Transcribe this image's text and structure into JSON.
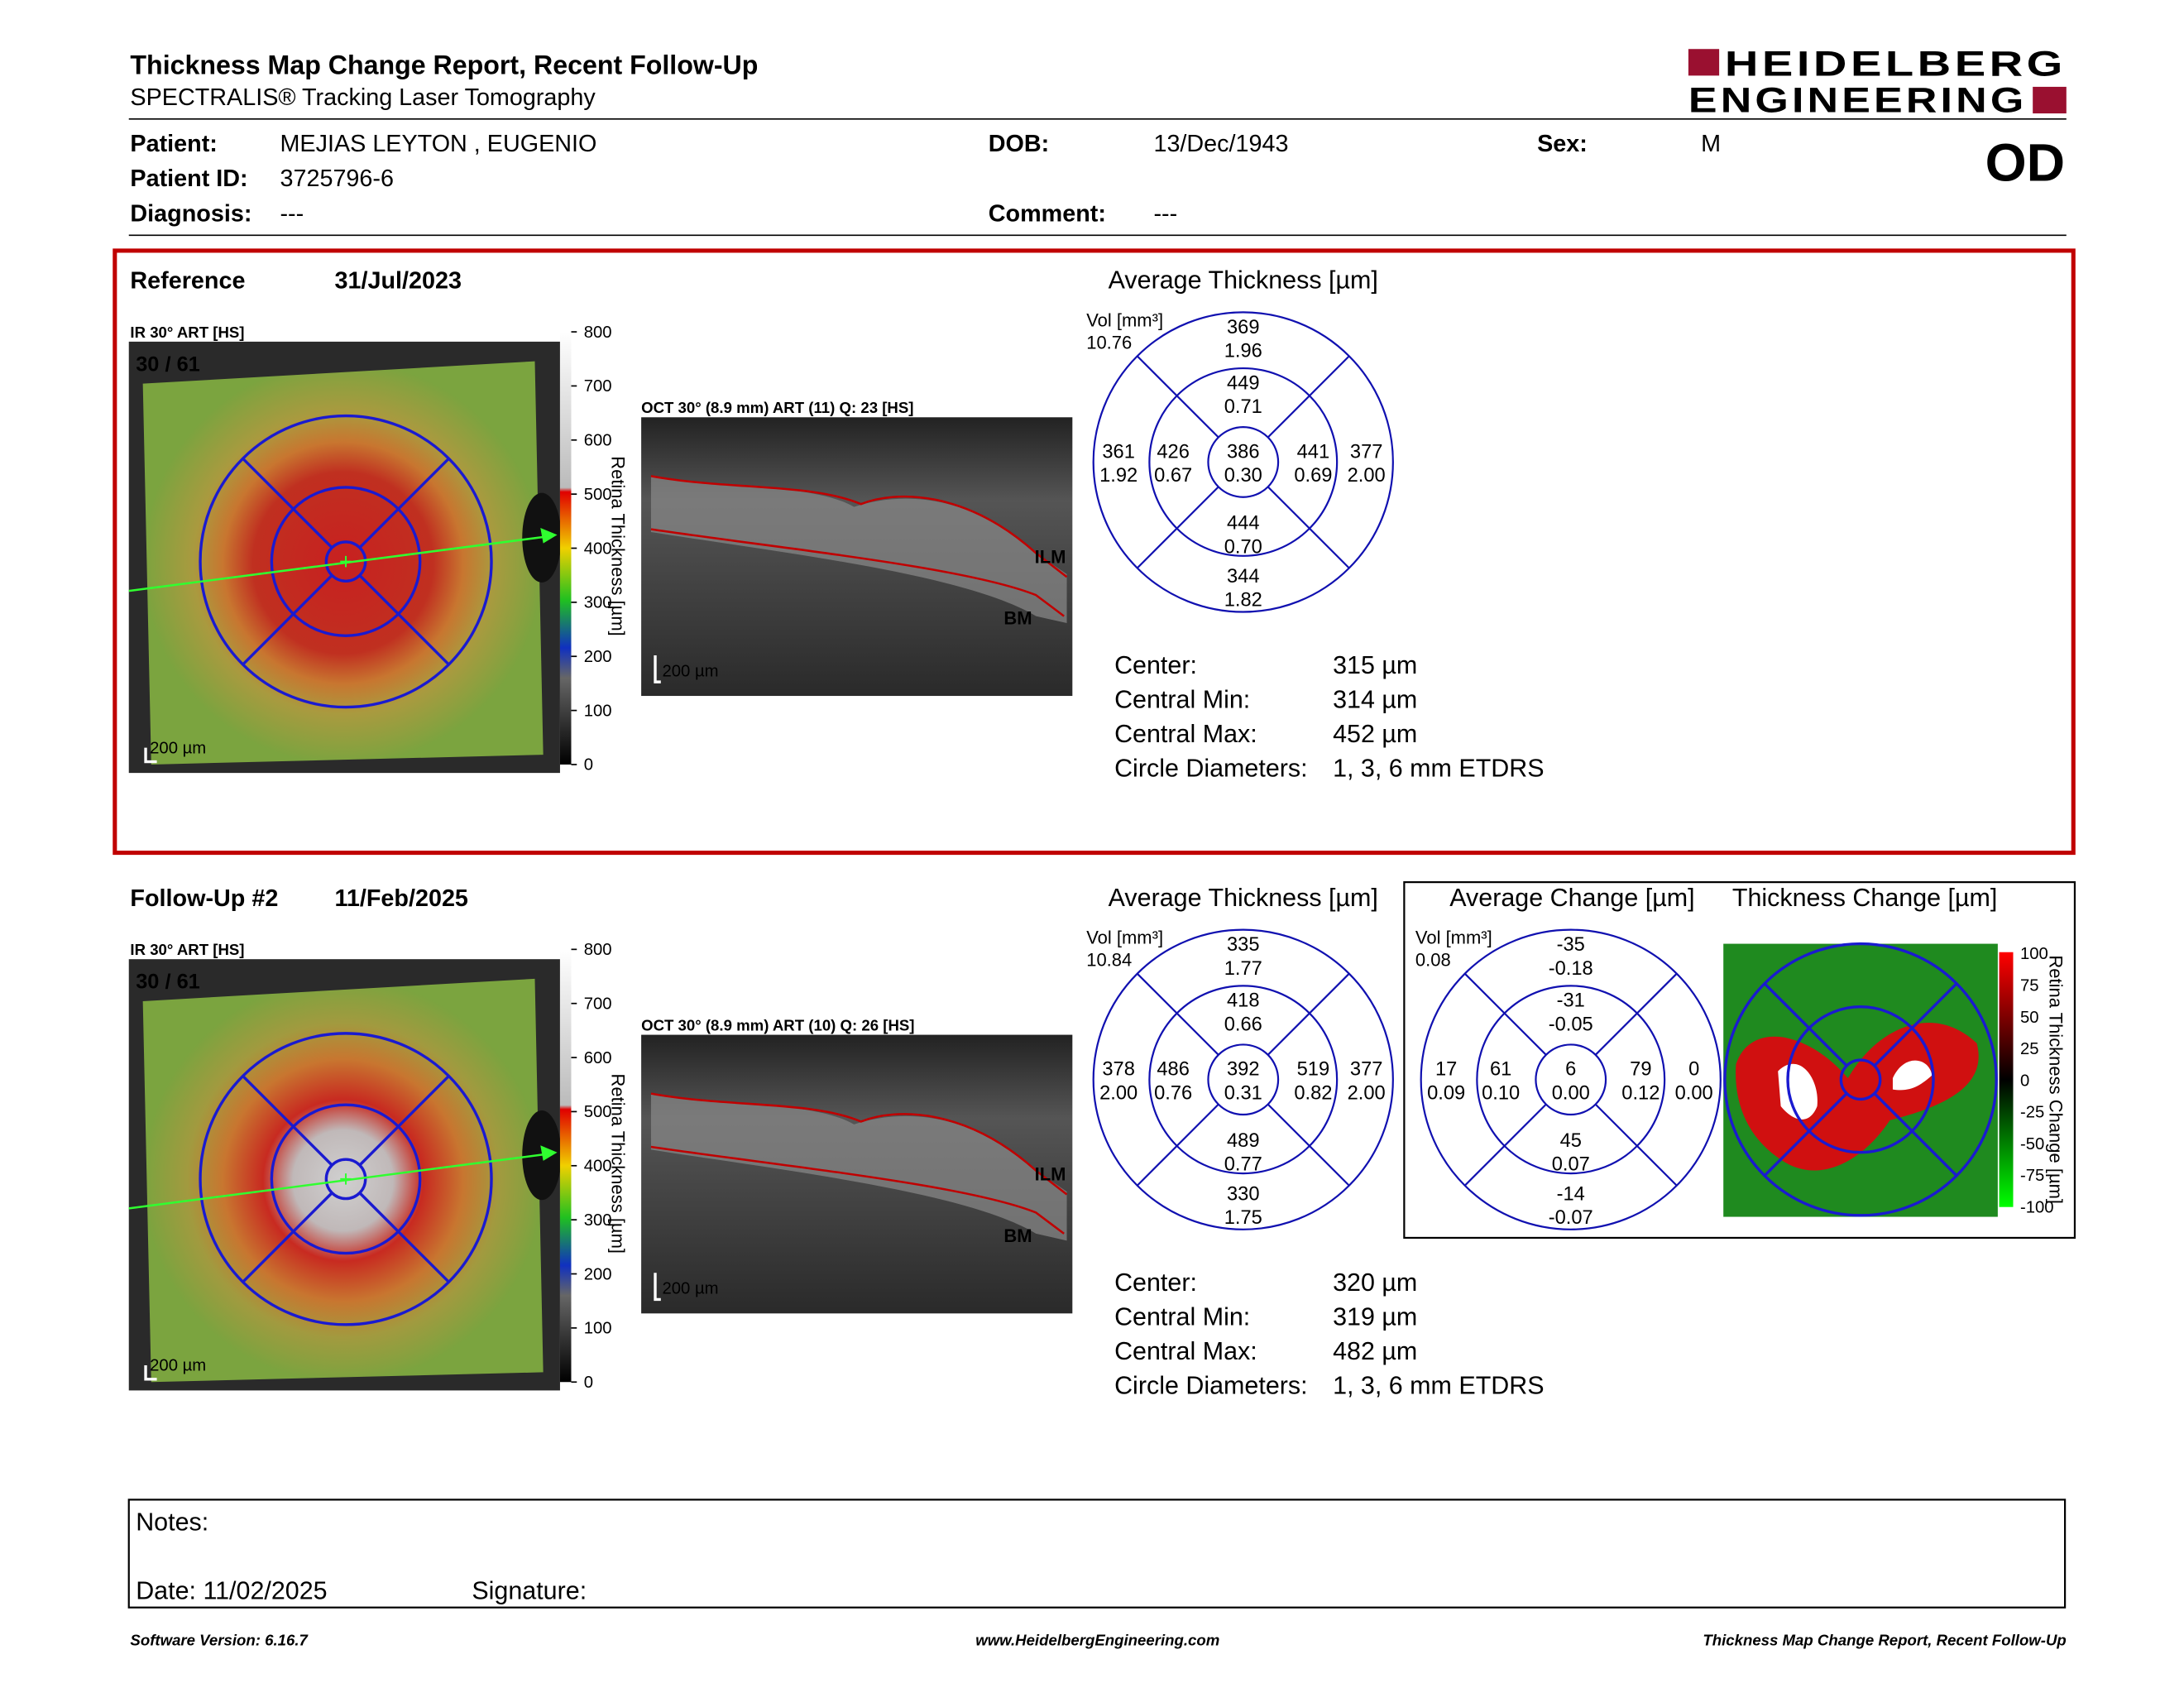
{
  "header": {
    "title": "Thickness Map Change Report, Recent Follow-Up",
    "subtitle": "SPECTRALIS® Tracking Laser Tomography",
    "logo_line1": "HEIDELBERG",
    "logo_line2": "ENGINEERING",
    "eye": "OD"
  },
  "patient": [
    {
      "label": "Patient:",
      "value": "MEJIAS LEYTON , EUGENIO"
    },
    {
      "label": "Patient ID:",
      "value": "3725796-6"
    },
    {
      "label": "Diagnosis:",
      "value": "---"
    },
    {
      "label": "DOB:",
      "value": "13/Dec/1943"
    },
    {
      "label": "Comment:",
      "value": "---"
    },
    {
      "label": "Sex:",
      "value": "M"
    }
  ],
  "exams": [
    {
      "label": "Reference",
      "date": "31/Jul/2023",
      "ir_label": "IR 30° ART [HS]",
      "ir_count": "30 / 61",
      "ir_scale": "200 µm",
      "colorbar_ticks": [
        "800",
        "700",
        "600",
        "500",
        "400",
        "300",
        "200",
        "100",
        "0"
      ],
      "colorbar_title": "Retina Thickness [µm]",
      "oct_label": "OCT 30° (8.9 mm) ART (11) Q: 23 [HS]",
      "oct_scale": "200 µm",
      "oct_markers": [
        "ILM",
        "BM"
      ],
      "avg_title": "Average Thickness [µm]",
      "vol_label": "Vol [mm³]",
      "total_vol": "10.76",
      "sectors": {
        "center": [
          "386",
          "0.30"
        ],
        "inner_top": [
          "449",
          "0.71"
        ],
        "inner_right": [
          "441",
          "0.69"
        ],
        "inner_bottom": [
          "444",
          "0.70"
        ],
        "inner_left": [
          "426",
          "0.67"
        ],
        "outer_top": [
          "369",
          "1.96"
        ],
        "outer_right": [
          "377",
          "2.00"
        ],
        "outer_bottom": [
          "344",
          "1.82"
        ],
        "outer_left": [
          "361",
          "1.92"
        ]
      },
      "stats": [
        {
          "label": "Center:",
          "value": "315 µm"
        },
        {
          "label": "Central Min:",
          "value": "314 µm"
        },
        {
          "label": "Central Max:",
          "value": "452 µm"
        },
        {
          "label": "Circle Diameters:",
          "value": "1, 3, 6 mm ETDRS"
        }
      ]
    },
    {
      "label": "Follow-Up #2",
      "date": "11/Feb/2025",
      "ir_label": "IR 30° ART [HS]",
      "ir_count": "30 / 61",
      "ir_scale": "200 µm",
      "colorbar_ticks": [
        "800",
        "700",
        "600",
        "500",
        "400",
        "300",
        "200",
        "100",
        "0"
      ],
      "colorbar_title": "Retina Thickness [µm]",
      "oct_label": "OCT 30° (8.9 mm) ART (10) Q: 26 [HS]",
      "oct_scale": "200 µm",
      "oct_markers": [
        "ILM",
        "BM"
      ],
      "avg_title": "Average Thickness [µm]",
      "vol_label": "Vol [mm³]",
      "total_vol": "10.84",
      "sectors": {
        "center": [
          "392",
          "0.31"
        ],
        "inner_top": [
          "418",
          "0.66"
        ],
        "inner_right": [
          "519",
          "0.82"
        ],
        "inner_bottom": [
          "489",
          "0.77"
        ],
        "inner_left": [
          "486",
          "0.76"
        ],
        "outer_top": [
          "335",
          "1.77"
        ],
        "outer_right": [
          "377",
          "2.00"
        ],
        "outer_bottom": [
          "330",
          "1.75"
        ],
        "outer_left": [
          "378",
          "2.00"
        ]
      },
      "stats": [
        {
          "label": "Center:",
          "value": "320 µm"
        },
        {
          "label": "Central Min:",
          "value": "319 µm"
        },
        {
          "label": "Central Max:",
          "value": "482 µm"
        },
        {
          "label": "Circle Diameters:",
          "value": "1, 3, 6 mm ETDRS"
        }
      ]
    }
  ],
  "change": {
    "avg_title": "Average Change [µm]",
    "vol_label": "Vol [mm³]",
    "total_vol": "0.08",
    "sectors": {
      "center": [
        "6",
        "0.00"
      ],
      "inner_top": [
        "-31",
        "-0.05"
      ],
      "inner_right": [
        "79",
        "0.12"
      ],
      "inner_bottom": [
        "45",
        "0.07"
      ],
      "inner_left": [
        "61",
        "0.10"
      ],
      "outer_top": [
        "-35",
        "-0.18"
      ],
      "outer_right": [
        "0",
        "0.00"
      ],
      "outer_bottom": [
        "-14",
        "-0.07"
      ],
      "outer_left": [
        "17",
        "0.09"
      ]
    },
    "map_title": "Thickness Change [µm]",
    "colorbar_ticks": [
      "100",
      "75",
      "50",
      "25",
      "0",
      "-25",
      "-50",
      "-75",
      "-100"
    ],
    "colorbar_title": "Retina Thickness Change [µm]"
  },
  "notes": {
    "notes_label": "Notes:",
    "date": "Date: 11/02/2025",
    "signature": "Signature:"
  },
  "footer": {
    "left": "Software Version: 6.16.7",
    "center": "www.HeidelbergEngineering.com",
    "right": "Thickness Map Change Report, Recent Follow-Up"
  }
}
